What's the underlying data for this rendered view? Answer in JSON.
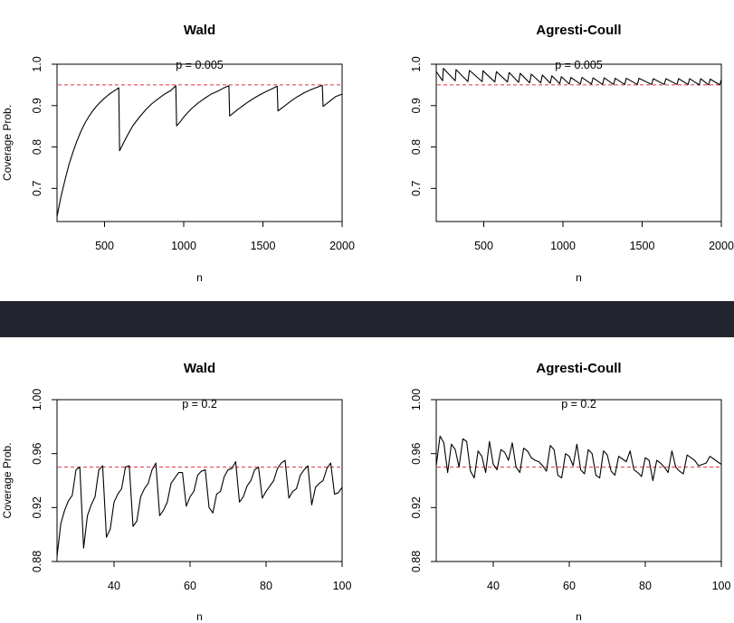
{
  "colors": {
    "reference_line": "#e0303c",
    "series_line": "#000000",
    "separator_band": "#23262f"
  },
  "chart_data": [
    {
      "type": "line",
      "title": "Wald",
      "annotation": "p = 0.005",
      "xlabel": "n",
      "ylabel": "Coverage Prob.",
      "xlim": [
        200,
        2000
      ],
      "ylim": [
        0.62,
        1.0
      ],
      "xticks": [
        "500",
        "1000",
        "1500",
        "2000"
      ],
      "yticks": [
        "0.7",
        "0.8",
        "0.9",
        "1.0"
      ],
      "reference_line": 0.95,
      "series": [
        {
          "x": [
            200,
            225,
            250,
            275,
            300,
            325,
            350,
            375,
            400,
            425,
            450,
            475,
            500,
            525,
            550,
            575,
            590,
            595,
            620,
            650,
            680,
            720,
            760,
            800,
            840,
            880,
            920,
            950,
            955,
            980,
            1010,
            1050,
            1090,
            1130,
            1170,
            1210,
            1250,
            1285,
            1290,
            1320,
            1360,
            1400,
            1440,
            1480,
            1520,
            1560,
            1590,
            1595,
            1640,
            1680,
            1720,
            1760,
            1800,
            1840,
            1875,
            1880,
            1920,
            1950,
            1960,
            2000
          ],
          "values": [
            0.632,
            0.68,
            0.72,
            0.757,
            0.787,
            0.814,
            0.837,
            0.857,
            0.873,
            0.887,
            0.899,
            0.909,
            0.918,
            0.926,
            0.933,
            0.939,
            0.943,
            0.791,
            0.81,
            0.832,
            0.852,
            0.872,
            0.89,
            0.905,
            0.917,
            0.928,
            0.937,
            0.948,
            0.851,
            0.862,
            0.877,
            0.893,
            0.906,
            0.917,
            0.927,
            0.934,
            0.942,
            0.948,
            0.875,
            0.884,
            0.896,
            0.907,
            0.917,
            0.926,
            0.934,
            0.941,
            0.947,
            0.887,
            0.9,
            0.912,
            0.922,
            0.931,
            0.938,
            0.944,
            0.949,
            0.898,
            0.91,
            0.919,
            0.922,
            0.928
          ]
        }
      ]
    },
    {
      "type": "line",
      "title": "Agresti-Coull",
      "annotation": "p = 0.005",
      "xlabel": "n",
      "ylabel": "",
      "xlim": [
        200,
        2000
      ],
      "ylim": [
        0.62,
        1.0
      ],
      "xticks": [
        "500",
        "1000",
        "1500",
        "2000"
      ],
      "yticks": [
        "0.7",
        "0.8",
        "0.9",
        "1.0"
      ],
      "reference_line": 0.95,
      "series": [
        {
          "x": [
            200,
            240,
            245,
            320,
            325,
            400,
            410,
            490,
            495,
            570,
            580,
            650,
            660,
            720,
            730,
            790,
            800,
            860,
            870,
            920,
            930,
            980,
            990,
            1040,
            1050,
            1110,
            1120,
            1180,
            1190,
            1250,
            1260,
            1320,
            1330,
            1390,
            1400,
            1470,
            1480,
            1560,
            1570,
            1640,
            1650,
            1720,
            1730,
            1790,
            1800,
            1860,
            1870,
            1920,
            1930,
            1990,
            2000
          ],
          "values": [
            0.982,
            0.96,
            0.99,
            0.96,
            0.987,
            0.958,
            0.985,
            0.958,
            0.984,
            0.957,
            0.982,
            0.957,
            0.98,
            0.956,
            0.978,
            0.955,
            0.976,
            0.955,
            0.974,
            0.954,
            0.972,
            0.953,
            0.97,
            0.952,
            0.968,
            0.952,
            0.968,
            0.952,
            0.967,
            0.951,
            0.967,
            0.951,
            0.966,
            0.951,
            0.966,
            0.951,
            0.966,
            0.951,
            0.965,
            0.951,
            0.965,
            0.951,
            0.965,
            0.951,
            0.965,
            0.95,
            0.965,
            0.95,
            0.964,
            0.95,
            0.963
          ]
        }
      ]
    },
    {
      "type": "line",
      "title": "Wald",
      "annotation": "p = 0.2",
      "xlabel": "n",
      "ylabel": "Coverage Prob.",
      "xlim": [
        25,
        100
      ],
      "ylim": [
        0.88,
        1.0
      ],
      "xticks": [
        "40",
        "60",
        "80",
        "100"
      ],
      "yticks": [
        "0.88",
        "0.92",
        "0.96",
        "1.00"
      ],
      "reference_line": 0.95,
      "series": [
        {
          "x": [
            25,
            26,
            27,
            28,
            29,
            30,
            31,
            32,
            33,
            34,
            35,
            36,
            37,
            38,
            39,
            40,
            41,
            42,
            43,
            44,
            45,
            46,
            47,
            48,
            49,
            50,
            51,
            52,
            53,
            54,
            55,
            56,
            57,
            58,
            59,
            60,
            61,
            62,
            63,
            64,
            65,
            66,
            67,
            68,
            69,
            70,
            71,
            72,
            73,
            74,
            75,
            76,
            77,
            78,
            79,
            80,
            81,
            82,
            83,
            84,
            85,
            86,
            87,
            88,
            89,
            90,
            91,
            92,
            93,
            94,
            95,
            96,
            97,
            98,
            99,
            100
          ],
          "values": [
            0.884,
            0.908,
            0.918,
            0.925,
            0.929,
            0.948,
            0.95,
            0.89,
            0.914,
            0.922,
            0.928,
            0.948,
            0.951,
            0.898,
            0.904,
            0.924,
            0.93,
            0.934,
            0.95,
            0.951,
            0.906,
            0.91,
            0.928,
            0.934,
            0.938,
            0.948,
            0.953,
            0.914,
            0.918,
            0.924,
            0.938,
            0.942,
            0.946,
            0.946,
            0.921,
            0.928,
            0.932,
            0.944,
            0.947,
            0.948,
            0.92,
            0.916,
            0.93,
            0.932,
            0.943,
            0.948,
            0.949,
            0.954,
            0.924,
            0.928,
            0.936,
            0.94,
            0.948,
            0.95,
            0.927,
            0.932,
            0.936,
            0.94,
            0.949,
            0.953,
            0.955,
            0.927,
            0.932,
            0.934,
            0.944,
            0.948,
            0.951,
            0.922,
            0.935,
            0.938,
            0.94,
            0.949,
            0.953,
            0.93,
            0.931,
            0.935
          ]
        }
      ]
    },
    {
      "type": "line",
      "title": "Agresti-Coull",
      "annotation": "p = 0.2",
      "xlabel": "n",
      "ylabel": "",
      "xlim": [
        25,
        100
      ],
      "ylim": [
        0.88,
        1.0
      ],
      "xticks": [
        "40",
        "60",
        "80",
        "100"
      ],
      "yticks": [
        "0.88",
        "0.92",
        "0.96",
        "1.00"
      ],
      "reference_line": 0.95,
      "series": [
        {
          "x": [
            25,
            26,
            27,
            28,
            29,
            30,
            31,
            32,
            33,
            34,
            35,
            36,
            37,
            38,
            39,
            40,
            41,
            42,
            43,
            44,
            45,
            46,
            47,
            48,
            49,
            50,
            51,
            52,
            53,
            54,
            55,
            56,
            57,
            58,
            59,
            60,
            61,
            62,
            63,
            64,
            65,
            66,
            67,
            68,
            69,
            70,
            71,
            72,
            73,
            74,
            75,
            76,
            77,
            78,
            79,
            80,
            81,
            82,
            83,
            84,
            85,
            86,
            87,
            88,
            89,
            90,
            91,
            92,
            93,
            94,
            95,
            96,
            97,
            98,
            99,
            100
          ],
          "values": [
            0.951,
            0.973,
            0.968,
            0.946,
            0.967,
            0.963,
            0.95,
            0.971,
            0.969,
            0.947,
            0.942,
            0.962,
            0.958,
            0.946,
            0.969,
            0.952,
            0.948,
            0.963,
            0.961,
            0.955,
            0.968,
            0.95,
            0.946,
            0.964,
            0.962,
            0.957,
            0.955,
            0.954,
            0.951,
            0.947,
            0.966,
            0.963,
            0.944,
            0.942,
            0.96,
            0.958,
            0.951,
            0.967,
            0.948,
            0.945,
            0.963,
            0.96,
            0.944,
            0.942,
            0.962,
            0.959,
            0.947,
            0.944,
            0.958,
            0.956,
            0.954,
            0.962,
            0.948,
            0.946,
            0.943,
            0.957,
            0.955,
            0.94,
            0.955,
            0.953,
            0.95,
            0.946,
            0.962,
            0.95,
            0.947,
            0.945,
            0.959,
            0.957,
            0.955,
            0.951,
            0.952,
            0.953,
            0.958,
            0.956,
            0.954,
            0.952
          ]
        }
      ]
    }
  ]
}
